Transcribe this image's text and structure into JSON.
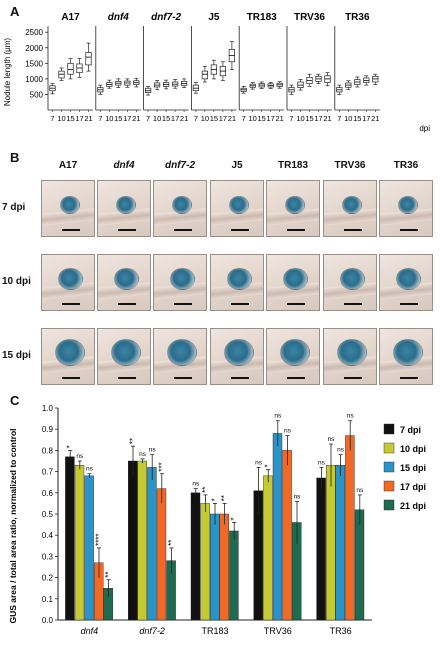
{
  "panels": {
    "a": "A",
    "b": "B",
    "c": "C"
  },
  "panelA": {
    "ylabel": "Nodule length (µm)",
    "yticks": [
      "500",
      "1000",
      "1500",
      "2000",
      "2500"
    ],
    "xticks": [
      "7",
      "10",
      "15",
      "17",
      "21"
    ],
    "xunit": "dpi",
    "lines": [
      "A17",
      "dnf4",
      "dnf7-2",
      "J5",
      "TR183",
      "TRV36",
      "TR36"
    ]
  },
  "panelB": {
    "lines": [
      "A17",
      "dnf4",
      "dnf7-2",
      "J5",
      "TR183",
      "TRV36",
      "TR36"
    ],
    "rows": [
      "7 dpi",
      "10 dpi",
      "15 dpi"
    ]
  },
  "chart_data": [
    {
      "type": "box",
      "panel": "A",
      "ylabel": "Nodule length (µm)",
      "xlabel": "dpi",
      "ylim": [
        0,
        2700
      ],
      "x": [
        7,
        10,
        15,
        17,
        21
      ],
      "series": [
        {
          "name": "A17",
          "median": [
            700,
            1150,
            1300,
            1350,
            1700
          ],
          "q1": [
            620,
            1030,
            1150,
            1200,
            1450
          ],
          "q3": [
            780,
            1250,
            1500,
            1480,
            1850
          ],
          "min": [
            520,
            950,
            1000,
            1050,
            1250
          ],
          "max": [
            850,
            1350,
            1650,
            1650,
            2150
          ]
        },
        {
          "name": "dnf4",
          "median": [
            650,
            820,
            860,
            870,
            880
          ],
          "q1": [
            580,
            760,
            800,
            800,
            820
          ],
          "q3": [
            720,
            880,
            920,
            930,
            940
          ],
          "min": [
            500,
            700,
            720,
            730,
            740
          ],
          "max": [
            800,
            960,
            1000,
            1000,
            1020
          ]
        },
        {
          "name": "dnf7-2",
          "median": [
            620,
            800,
            820,
            830,
            850
          ],
          "q1": [
            560,
            740,
            760,
            770,
            790
          ],
          "q3": [
            700,
            870,
            880,
            900,
            920
          ],
          "min": [
            480,
            660,
            680,
            700,
            720
          ],
          "max": [
            760,
            950,
            960,
            980,
            1000
          ]
        },
        {
          "name": "J5",
          "median": [
            700,
            1150,
            1300,
            1250,
            1750
          ],
          "q1": [
            620,
            1000,
            1150,
            1100,
            1550
          ],
          "q3": [
            800,
            1250,
            1450,
            1400,
            1950
          ],
          "min": [
            540,
            900,
            1000,
            950,
            1300
          ],
          "max": [
            880,
            1400,
            1600,
            1550,
            2200
          ]
        },
        {
          "name": "TR183",
          "median": [
            650,
            780,
            800,
            790,
            810
          ],
          "q1": [
            600,
            730,
            740,
            740,
            760
          ],
          "q3": [
            700,
            830,
            850,
            840,
            860
          ],
          "min": [
            540,
            670,
            690,
            690,
            700
          ],
          "max": [
            760,
            880,
            900,
            890,
            910
          ]
        },
        {
          "name": "TRV36",
          "median": [
            650,
            800,
            950,
            1000,
            1000
          ],
          "q1": [
            580,
            720,
            850,
            920,
            880
          ],
          "q3": [
            720,
            900,
            1050,
            1080,
            1100
          ],
          "min": [
            500,
            640,
            760,
            850,
            780
          ],
          "max": [
            800,
            980,
            1150,
            1150,
            1200
          ]
        },
        {
          "name": "TR36",
          "median": [
            650,
            800,
            900,
            950,
            1000
          ],
          "q1": [
            580,
            730,
            820,
            880,
            900
          ],
          "q3": [
            720,
            870,
            980,
            1030,
            1080
          ],
          "min": [
            500,
            660,
            740,
            800,
            820
          ],
          "max": [
            800,
            940,
            1060,
            1100,
            1150
          ]
        }
      ]
    },
    {
      "type": "bar",
      "panel": "C",
      "ylabel": "GUS area / total area ratio, normalized to control",
      "ylim": [
        0,
        1.0
      ],
      "yticks": [
        "0.0",
        "0.1",
        "0.2",
        "0.3",
        "0.4",
        "0.5",
        "0.6",
        "0.7",
        "0.8",
        "0.9",
        "1.0"
      ],
      "categories": [
        "dnf4",
        "dnf7-2",
        "TR183",
        "TRV36",
        "TR36"
      ],
      "legend_position": "top-right",
      "series": [
        {
          "name": "7 dpi",
          "color": "#111111",
          "values": [
            0.77,
            0.75,
            0.6,
            0.61,
            0.67
          ],
          "errors": [
            0.03,
            0.07,
            0.02,
            0.11,
            0.05
          ],
          "sig": [
            "*",
            "**",
            "ns",
            "ns",
            "ns"
          ]
        },
        {
          "name": "10 dpi",
          "color": "#c5c932",
          "values": [
            0.73,
            0.75,
            0.55,
            0.68,
            0.73
          ],
          "errors": [
            0.02,
            0.01,
            0.04,
            0.03,
            0.1
          ],
          "sig": [
            "ns",
            "ns",
            "**",
            "*",
            "ns"
          ]
        },
        {
          "name": "15 dpi",
          "color": "#2a93c7",
          "values": [
            0.68,
            0.72,
            0.5,
            0.88,
            0.73
          ],
          "errors": [
            0.01,
            0.06,
            0.05,
            0.06,
            0.05
          ],
          "sig": [
            "ns",
            "ns",
            "*",
            "ns",
            "ns"
          ]
        },
        {
          "name": "17 dpi",
          "color": "#f06a25",
          "values": [
            0.27,
            0.62,
            0.5,
            0.8,
            0.87
          ],
          "errors": [
            0.07,
            0.07,
            0.05,
            0.07,
            0.07
          ],
          "sig": [
            "****",
            "***",
            "**",
            "ns",
            "ns"
          ]
        },
        {
          "name": "21 dpi",
          "color": "#1f6b4f",
          "values": [
            0.15,
            0.28,
            0.42,
            0.46,
            0.52
          ],
          "errors": [
            0.04,
            0.06,
            0.04,
            0.1,
            0.07
          ],
          "sig": [
            "**",
            "**",
            "*",
            "ns",
            "ns"
          ]
        }
      ]
    }
  ]
}
